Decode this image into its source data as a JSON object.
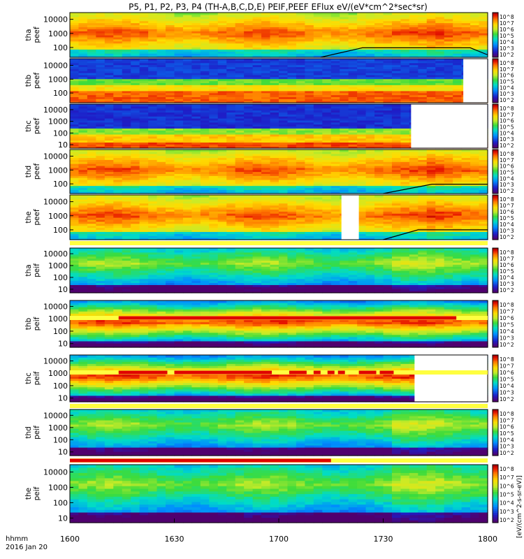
{
  "title": "P5, P1, P2, P3, P4 (TH-A,B,C,D,E) PEIF,PEEF EFlux eV/(eV*cm^2*sec*sr)",
  "x_axis": {
    "corner_label_1": "hhmm",
    "corner_label_2": "2016 Jan 20",
    "tick_labels": [
      "1600",
      "1630",
      "1700",
      "1730",
      "1800"
    ]
  },
  "colorbar": {
    "tick_labels": [
      "10^8",
      "10^7",
      "10^6",
      "10^5",
      "10^4",
      "10^3",
      "10^2"
    ],
    "units_label": "[eV/(cm^2-s-sr-eV)]"
  },
  "colors": {
    "flag_red": "#e00000",
    "flag_yellow": "#ffff40",
    "trace": "#000000"
  },
  "chart_data": {
    "type": "heatmap",
    "x_range": [
      "16:00",
      "18:00"
    ],
    "y_scale": "log",
    "panels": [
      {
        "id": "tha-peef",
        "ylabel": "tha\npeef",
        "y_ticks": [
          "10000",
          "1000",
          "100"
        ],
        "ylim": [
          20,
          30000
        ],
        "profile": "hot-elec"
      },
      {
        "id": "thb-peef",
        "ylabel": "thb\npeef",
        "y_ticks": [
          "10000",
          "1000",
          "100"
        ],
        "ylim": [
          20,
          30000
        ],
        "profile": "sw-elec",
        "no_data_after": "17:53"
      },
      {
        "id": "thc-peef",
        "ylabel": "thc\npeef",
        "y_ticks": [
          "10000",
          "1000",
          "100",
          "10"
        ],
        "ylim": [
          5,
          30000
        ],
        "profile": "sw-elec-low",
        "no_data_after": "17:38"
      },
      {
        "id": "thd-peef",
        "ylabel": "thd\npeef",
        "y_ticks": [
          "10000",
          "1000",
          "100"
        ],
        "ylim": [
          20,
          30000
        ],
        "profile": "hot-elec"
      },
      {
        "id": "the-peef",
        "ylabel": "the\npeef",
        "y_ticks": [
          "10000",
          "1000",
          "100"
        ],
        "ylim": [
          20,
          30000
        ],
        "profile": "hot-elec",
        "no_data_between": [
          "17:18",
          "17:23"
        ]
      },
      {
        "id": "tha-peif",
        "ylabel": "tha\npeif",
        "y_ticks": [
          "10000",
          "1000",
          "100",
          "10"
        ],
        "ylim": [
          5,
          30000
        ],
        "profile": "ion-hot"
      },
      {
        "id": "thb-peif",
        "ylabel": "thb\npeif",
        "y_ticks": [
          "10000",
          "1000",
          "100",
          "10"
        ],
        "ylim": [
          5,
          30000
        ],
        "profile": "ion-beam"
      },
      {
        "id": "thc-peif",
        "ylabel": "thc\npeif",
        "y_ticks": [
          "10000",
          "1000",
          "100",
          "10"
        ],
        "ylim": [
          5,
          30000
        ],
        "profile": "ion-beam",
        "no_data_after": "17:39"
      },
      {
        "id": "thd-peif",
        "ylabel": "thd\npeif",
        "y_ticks": [
          "10000",
          "1000",
          "100",
          "10"
        ],
        "ylim": [
          5,
          30000
        ],
        "profile": "ion-hot"
      },
      {
        "id": "the-peif",
        "ylabel": "the\npeif",
        "y_ticks": [
          "10000",
          "1000",
          "100",
          "10"
        ],
        "ylim": [
          5,
          30000
        ],
        "profile": "ion-hot"
      }
    ],
    "flag_bars": [
      {
        "after_panel": "the-peef",
        "segments": []
      },
      {
        "after_panel": "tha-peif",
        "segments": [
          [
            "16:14",
            "17:51"
          ]
        ]
      },
      {
        "after_panel": "thb-peif",
        "segments": [
          [
            "16:14",
            "16:28"
          ],
          [
            "16:30",
            "16:58"
          ],
          [
            "17:03",
            "17:08"
          ],
          [
            "17:10",
            "17:12"
          ],
          [
            "17:14",
            "17:16"
          ],
          [
            "17:17",
            "17:19"
          ],
          [
            "17:23",
            "17:28"
          ],
          [
            "17:29",
            "17:33"
          ]
        ]
      },
      {
        "after_panel": "thc-peif",
        "segments": []
      },
      {
        "after_panel": "thd-peif",
        "segments": [
          [
            "16:00",
            "17:15"
          ]
        ]
      }
    ],
    "traces": [
      {
        "panel": "tha-peef",
        "points": [
          [
            "17:12",
            20
          ],
          [
            "17:24",
            95
          ],
          [
            "17:55",
            95
          ],
          [
            "18:00",
            30
          ]
        ]
      },
      {
        "panel": "thd-peef",
        "points": [
          [
            "17:30",
            20
          ],
          [
            "17:44",
            95
          ],
          [
            "18:00",
            95
          ]
        ]
      },
      {
        "panel": "the-peef",
        "points": [
          [
            "17:30",
            20
          ],
          [
            "17:40",
            100
          ],
          [
            "18:00",
            100
          ]
        ]
      }
    ]
  }
}
